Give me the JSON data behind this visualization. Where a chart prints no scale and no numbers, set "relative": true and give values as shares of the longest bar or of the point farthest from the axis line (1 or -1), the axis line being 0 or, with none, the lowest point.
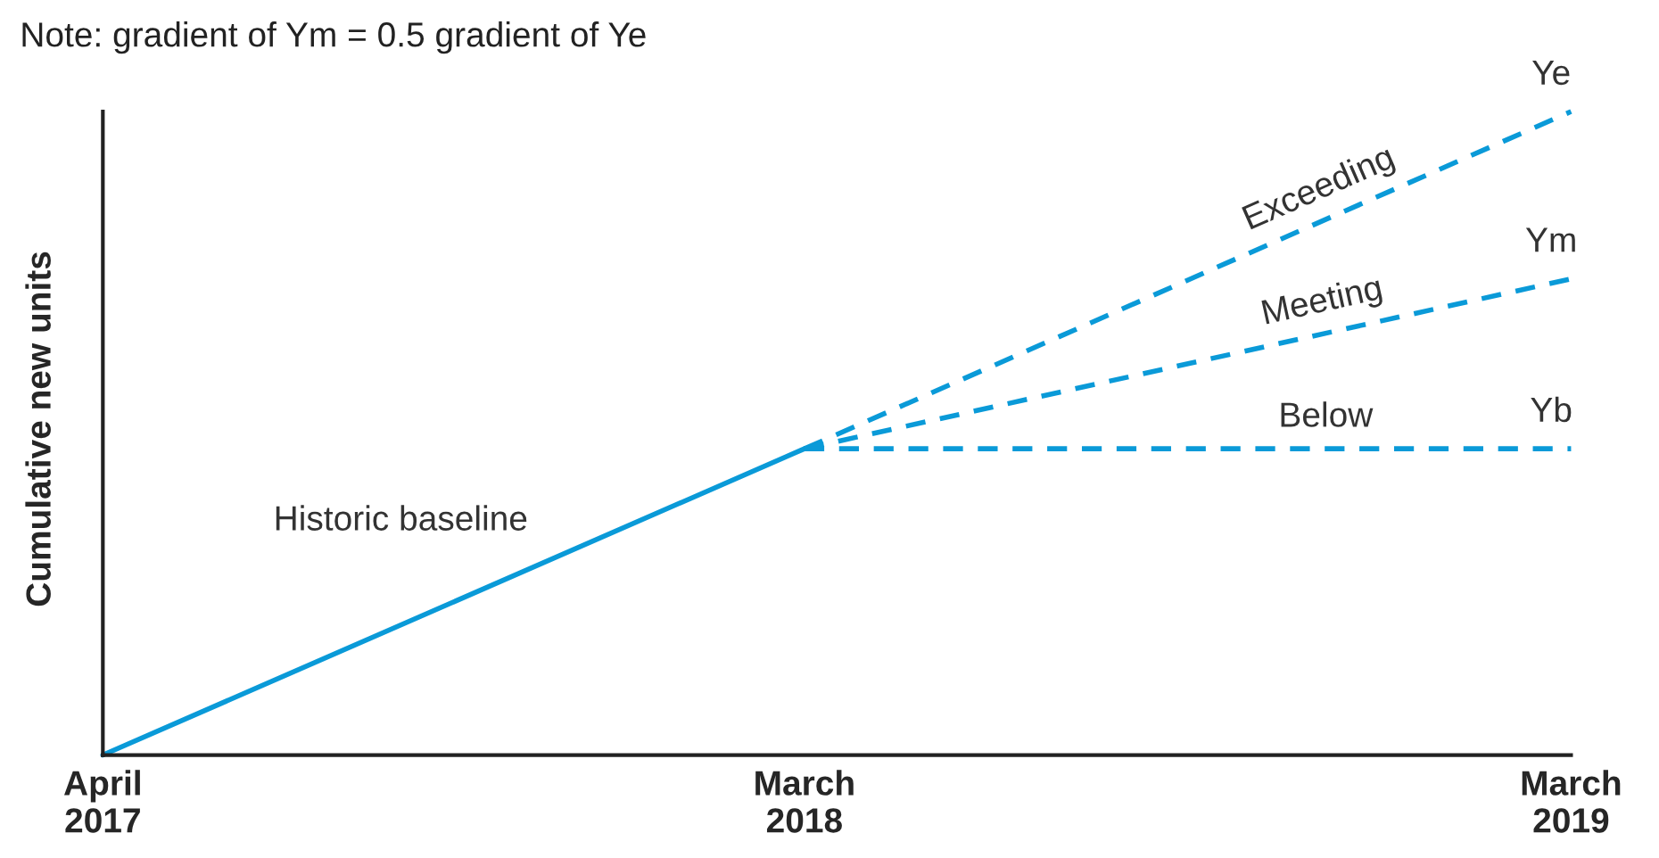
{
  "chart_data": {
    "type": "line",
    "relative": true,
    "ylabel": "Cumulative new units",
    "annotations": [
      "Note: gradient of Ym = 0.5 gradient of Ye",
      {
        "text": "Ye",
        "x": "2019-03",
        "y": 1
      },
      {
        "text": "Ym",
        "x": "2019-03",
        "y": 0.74
      },
      {
        "text": "Yb",
        "x": "2019-03",
        "y": 0.476
      }
    ],
    "xlim": [
      "2017-04",
      "2019-03"
    ],
    "xticks": [
      {
        "value": "2017-04",
        "label": "April\n2017"
      },
      {
        "value": "2018-03",
        "label": "March\n2018"
      },
      {
        "value": "2019-03",
        "label": "March\n2019"
      }
    ],
    "grid": false,
    "legend": false,
    "marker": "none",
    "series": [
      {
        "name": "Historic baseline",
        "color": "#0a9ad8",
        "line_style": "solid",
        "x": [
          "2017-04",
          "2018-03"
        ],
        "values": [
          0,
          0.476
        ]
      },
      {
        "name": "Exceeding",
        "color": "#0a9ad8",
        "line_style": "dashed",
        "x": [
          "2018-03",
          "2019-03"
        ],
        "values": [
          0.476,
          1
        ]
      },
      {
        "name": "Meeting",
        "color": "#0a9ad8",
        "line_style": "dashed",
        "x": [
          "2018-03",
          "2019-03"
        ],
        "values": [
          0.476,
          0.74
        ]
      },
      {
        "name": "Below",
        "color": "#0a9ad8",
        "line_style": "dashed",
        "x": [
          "2018-03",
          "2019-03"
        ],
        "values": [
          0.476,
          0.476
        ]
      }
    ]
  }
}
